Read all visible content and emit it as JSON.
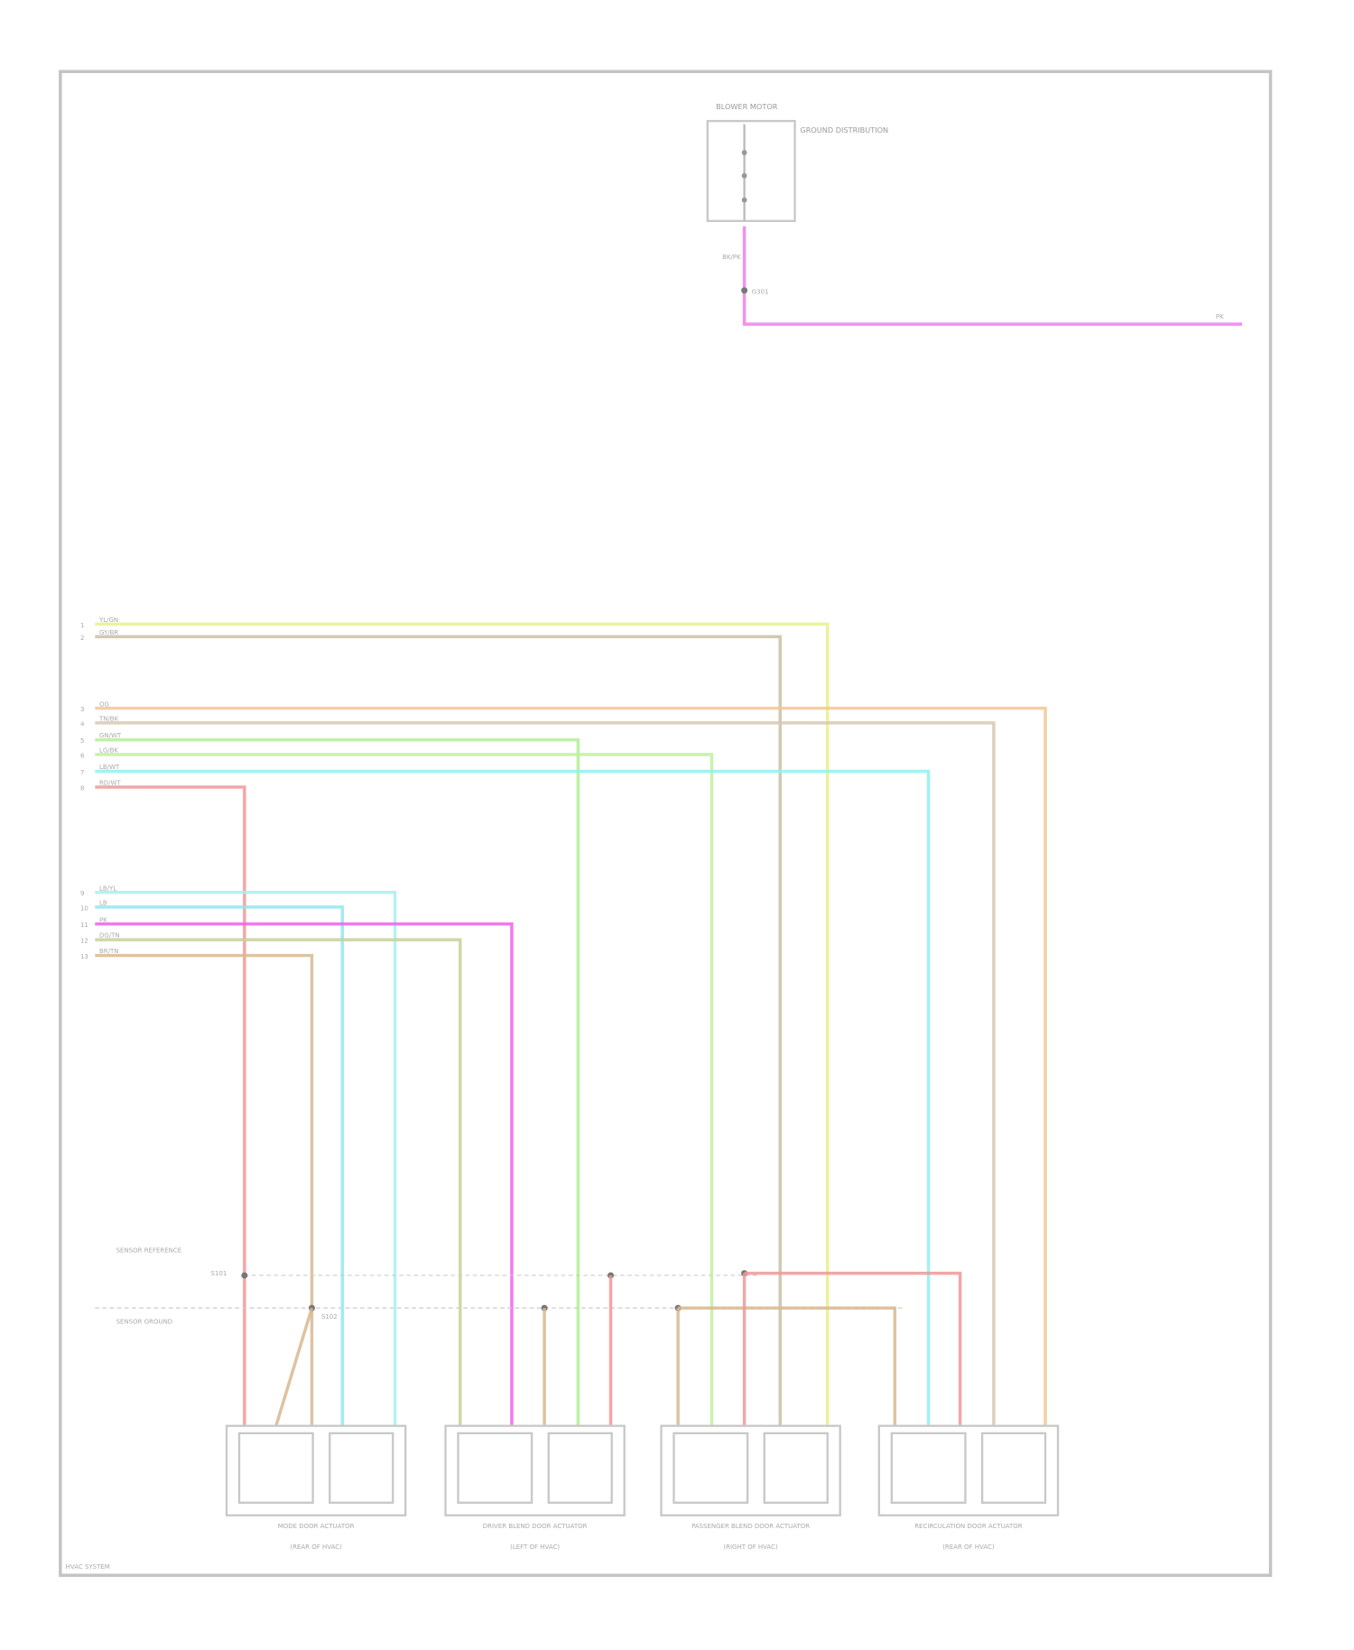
{
  "diagram": {
    "top_component": {
      "label": "BLOWER MOTOR",
      "note": "GROUND DISTRIBUTION"
    },
    "top_wire": {
      "label_top": "BK/PK",
      "label_mid": "G301",
      "label_end": "PK",
      "color": "#f07cf0"
    },
    "connector_groups": [
      {
        "pins": [
          {
            "pin": "1",
            "label": "YL/GN",
            "color": "#e8f08c"
          },
          {
            "pin": "2",
            "label": "GY/BR",
            "color": "#c8c0a8"
          }
        ]
      },
      {
        "pins": [
          {
            "pin": "3",
            "label": "OG",
            "color": "#f0c890"
          },
          {
            "pin": "4",
            "label": "TN/BK",
            "color": "#d8c8b0"
          },
          {
            "pin": "5",
            "label": "GN/WT",
            "color": "#b0f090"
          },
          {
            "pin": "6",
            "label": "LG/BK",
            "color": "#c0f0a0"
          },
          {
            "pin": "7",
            "label": "LB/WT",
            "color": "#90f0f0"
          },
          {
            "pin": "8",
            "label": "RD/WT",
            "color": "#f09898"
          }
        ]
      },
      {
        "pins": [
          {
            "pin": "9",
            "label": "LB/YL",
            "color": "#a8f0f0"
          },
          {
            "pin": "10",
            "label": "LB",
            "color": "#90e8f0"
          },
          {
            "pin": "11",
            "label": "PK",
            "color": "#f060f0"
          },
          {
            "pin": "12",
            "label": "DG/TN",
            "color": "#c8d098"
          },
          {
            "pin": "13",
            "label": "BR/TN",
            "color": "#d8b890"
          }
        ]
      }
    ],
    "splice_labels": [
      "SENSOR REFERENCE",
      "SENSOR GROUND",
      "S101",
      "S102"
    ],
    "actuators": [
      {
        "name": "MODE DOOR ACTUATOR",
        "sub": "(REAR OF HVAC)"
      },
      {
        "name": "DRIVER BLEND DOOR ACTUATOR",
        "sub": "(LEFT OF HVAC)"
      },
      {
        "name": "PASSENGER BLEND DOOR ACTUATOR",
        "sub": "(RIGHT OF HVAC)"
      },
      {
        "name": "RECIRCULATION DOOR ACTUATOR",
        "sub": "(REAR OF HVAC)"
      }
    ],
    "footer": "HVAC SYSTEM"
  }
}
